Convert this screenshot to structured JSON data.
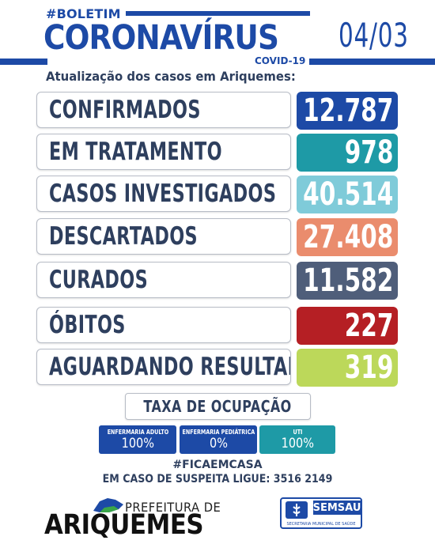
{
  "header": {
    "tag": "#BOLETIM",
    "title": "CORONAVÍRUS",
    "subtag": "COVID-19",
    "date": "04/03",
    "subtitle": "Atualização dos casos em Ariquemes:"
  },
  "rows": [
    {
      "label": "CONFIRMADOS",
      "value": "12.787",
      "color": "#1d4aa6"
    },
    {
      "label": "EM TRATAMENTO",
      "value": "978",
      "color": "#1e9aa6"
    },
    {
      "label": "CASOS INVESTIGADOS",
      "value": "40.514",
      "color": "#7fcbd9"
    },
    {
      "label": "DESCARTADOS",
      "value": "27.408",
      "color": "#ea8c6d"
    },
    {
      "label": "CURADOS",
      "value": "11.582",
      "color": "#4f5e7a"
    },
    {
      "label": "ÓBITOS",
      "value": "227",
      "color": "#b51f24"
    },
    {
      "label": "AGUARDANDO RESULTADO",
      "value": "319",
      "color": "#bcd85a"
    }
  ],
  "occupancy": {
    "title": "TAXA DE OCUPAÇÃO",
    "items": [
      {
        "label": "ENFERMARIA ADULTO",
        "value": "100%",
        "color": "#1d4aa6"
      },
      {
        "label": "ENFERMARIA PEDIÁTRICA",
        "value": "0%",
        "color": "#1d4aa6"
      },
      {
        "label": "UTI",
        "value": "100%",
        "color": "#1e9aa6"
      }
    ]
  },
  "footer": {
    "hashtag": "#FICAEMCASA",
    "contact": "EM CASO DE SUSPEITA LIGUE: 3516 2149"
  },
  "logos": {
    "prefeitura_small": "PREFEITURA DE",
    "prefeitura_city": "ARIQUEMES",
    "semsau_name": "SEMSAU",
    "semsau_sub": "SECRETARIA MUNICIPAL DE SAÚDE"
  }
}
